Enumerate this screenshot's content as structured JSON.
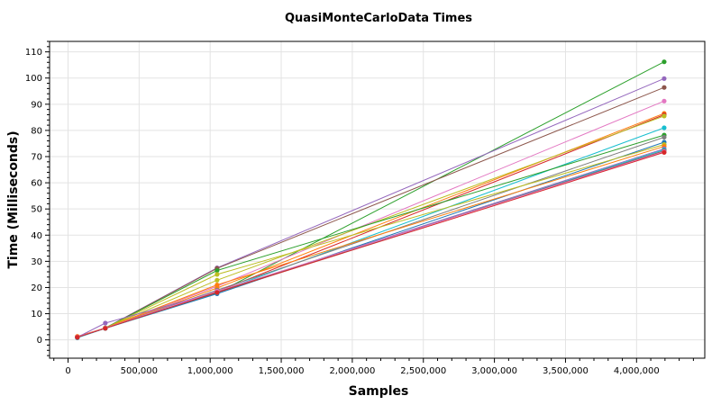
{
  "chart_data": {
    "type": "line",
    "title": "QuasiMonteCarloData Times",
    "xlabel": "Samples",
    "ylabel": "Time (Milliseconds)",
    "xlim": [
      -130000,
      4480000
    ],
    "ylim": [
      -7,
      114
    ],
    "x_ticks": [
      0,
      500000,
      1000000,
      1500000,
      2000000,
      2500000,
      3000000,
      3500000,
      4000000
    ],
    "x_tick_labels": [
      "0",
      "500,000",
      "1,000,000",
      "1,500,000",
      "2,000,000",
      "2,500,000",
      "3,000,000",
      "3,500,000",
      "4,000,000"
    ],
    "y_ticks": [
      0,
      10,
      20,
      30,
      40,
      50,
      60,
      70,
      80,
      90,
      100,
      110
    ],
    "y_tick_labels": [
      "0",
      "10",
      "20",
      "30",
      "40",
      "50",
      "60",
      "70",
      "80",
      "90",
      "100",
      "110"
    ],
    "grid": true,
    "x": [
      65536,
      262144,
      1048576,
      4194304
    ],
    "series": [
      {
        "color": "#2ca02c",
        "values": [
          1.0,
          4.5,
          17.9,
          106.2
        ]
      },
      {
        "color": "#9467bd",
        "values": [
          1.2,
          4.5,
          27.5,
          99.8
        ]
      },
      {
        "color": "#8c564b",
        "values": [
          1.0,
          4.5,
          27.3,
          96.4
        ]
      },
      {
        "color": "#e377c2",
        "values": [
          1.1,
          4.5,
          20.5,
          91.2
        ]
      },
      {
        "color": "#ff7f0e",
        "values": [
          1.2,
          4.4,
          19.8,
          86.5
        ]
      },
      {
        "color": "#d62728",
        "values": [
          1.3,
          4.5,
          18.5,
          86.0
        ]
      },
      {
        "color": "#bcbd22",
        "values": [
          1.2,
          4.6,
          22.8,
          85.5
        ]
      },
      {
        "color": "#17becf",
        "values": [
          0.9,
          4.4,
          18.2,
          81.0
        ]
      },
      {
        "color": "#2ca02c",
        "values": [
          1.0,
          4.5,
          26.5,
          78.2
        ]
      },
      {
        "color": "#7f7f7f",
        "values": [
          1.0,
          4.5,
          19.0,
          77.4
        ]
      },
      {
        "color": "#1f77b4",
        "values": [
          0.8,
          4.4,
          17.6,
          75.5
        ]
      },
      {
        "color": "#bcbd22",
        "values": [
          1.1,
          4.5,
          25.0,
          74.6
        ]
      },
      {
        "color": "#ff7f0e",
        "values": [
          1.3,
          4.5,
          21.0,
          73.9
        ]
      },
      {
        "color": "#9467bd",
        "values": [
          1.0,
          6.4,
          18.3,
          73.0
        ]
      },
      {
        "color": "#17becf",
        "values": [
          0.9,
          4.4,
          18.0,
          72.6
        ]
      },
      {
        "color": "#8c564b",
        "values": [
          1.0,
          4.5,
          18.4,
          72.2
        ]
      },
      {
        "color": "#e377c2",
        "values": [
          1.1,
          4.5,
          18.6,
          71.9
        ]
      },
      {
        "color": "#d62728",
        "values": [
          1.0,
          4.4,
          18.1,
          71.6
        ]
      }
    ]
  }
}
